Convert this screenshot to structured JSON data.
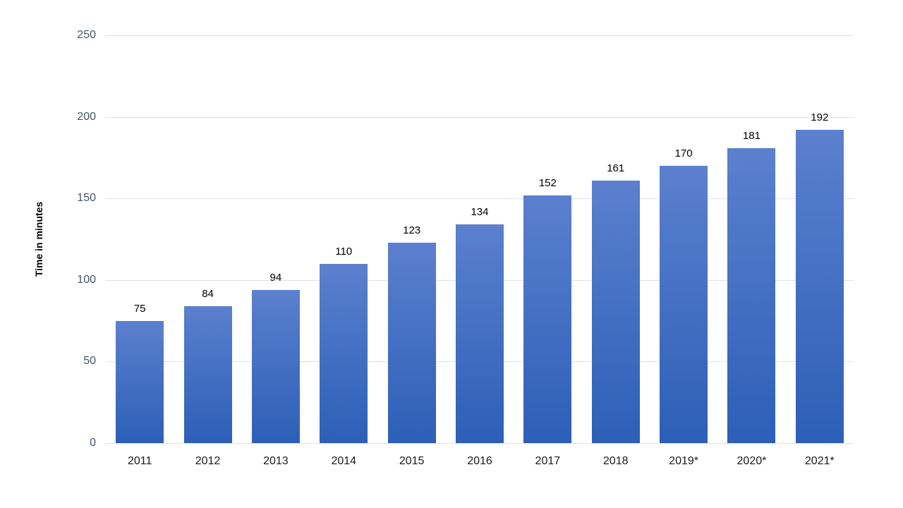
{
  "chart_data": {
    "type": "bar",
    "title": "",
    "xlabel": "",
    "ylabel": "Time in minutes",
    "categories": [
      "2011",
      "2012",
      "2013",
      "2014",
      "2015",
      "2016",
      "2017",
      "2018",
      "2019*",
      "2020*",
      "2021*"
    ],
    "values": [
      75,
      84,
      94,
      110,
      123,
      134,
      152,
      161,
      170,
      181,
      192
    ],
    "ylim": [
      0,
      250
    ],
    "yticks": [
      0,
      50,
      100,
      150,
      200,
      250
    ],
    "grid": "horizontal",
    "legend": "none",
    "colors": {
      "bar_gradient_top": "#5b80ce",
      "bar_gradient_bottom": "#2d5fb7",
      "gridline": "#dde2ea",
      "y_tick_label": "#44546a",
      "x_tick_label": "#1a1a1a",
      "value_label": "#000000",
      "background": "#ffffff"
    }
  }
}
